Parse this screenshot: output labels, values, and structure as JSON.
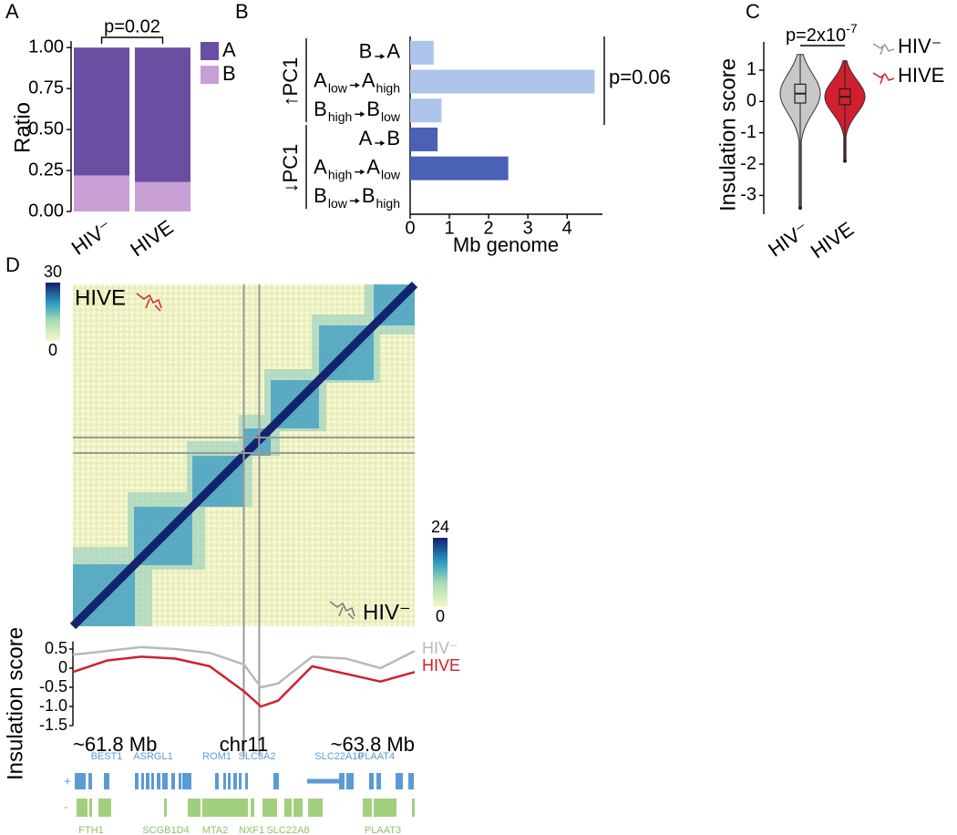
{
  "chart_data": [
    {
      "panel": "A",
      "type": "stacked-bar",
      "annotation": "p=0.02",
      "ylabel": "Ratio",
      "categories": [
        "HIV⁻",
        "HIVE"
      ],
      "series": [
        {
          "name": "B",
          "color": "#c79fd5",
          "values": [
            0.22,
            0.18
          ]
        },
        {
          "name": "A",
          "color": "#6a4ea2",
          "values": [
            0.78,
            0.82
          ]
        }
      ],
      "ylim": [
        0,
        1.04
      ],
      "yticks": [
        {
          "value": 0,
          "label": "0.00"
        },
        0.25,
        {
          "value": 0.5,
          "label": "0.50"
        },
        0.75,
        {
          "value": 1,
          "label": "1.00"
        }
      ]
    },
    {
      "panel": "B",
      "type": "hbar",
      "xlabel": "Mb genome",
      "annotation": "p=0.06",
      "groups": [
        {
          "name": "↑PC1",
          "color": "#adc5ea",
          "categories": [
            [
              "B",
              "A"
            ],
            [
              "A",
              "low",
              "A",
              "high"
            ],
            [
              "B",
              "high",
              "B",
              "low"
            ]
          ],
          "values": [
            0.6,
            4.7,
            0.8
          ]
        },
        {
          "name": "↓PC1",
          "color": "#4a61b5",
          "categories": [
            [
              "A",
              "B"
            ],
            [
              "A",
              "high",
              "A",
              "low"
            ],
            [
              "B",
              "low",
              "B",
              "high"
            ]
          ],
          "values": [
            0.7,
            2.5,
            0
          ]
        }
      ],
      "xlim": [
        0,
        4.9
      ],
      "xticks": [
        0,
        1,
        2,
        3,
        4
      ]
    },
    {
      "panel": "C",
      "type": "violin",
      "ylabel": "Insulation score",
      "annotation": [
        "p=2x10",
        "-7"
      ],
      "categories": [
        "HIV⁻",
        "HIVE"
      ],
      "series": [
        {
          "name": "HIV⁻",
          "color": "#c8c8c8",
          "median": 0.25,
          "q1": -0.05,
          "q3": 0.55,
          "min": -3.4,
          "max": 1.5
        },
        {
          "name": "HIVE",
          "color": "#d0202e",
          "median": 0.15,
          "q1": -0.1,
          "q3": 0.4,
          "min": -1.9,
          "max": 1.3
        }
      ],
      "ylim": [
        -3.6,
        1.9
      ],
      "yticks": [
        -3,
        -2,
        -1,
        0,
        1
      ]
    },
    {
      "panel": "D",
      "type": "heatmap",
      "labels": [
        "HIVE",
        "HIV⁻"
      ],
      "colorbars": [
        {
          "lim": [
            0,
            30
          ],
          "ticks": [
            0,
            30
          ]
        },
        {
          "lim": [
            0,
            24
          ],
          "ticks": [
            0,
            24
          ]
        }
      ]
    },
    {
      "type": "line",
      "ylabel": "Insulation score",
      "x": [
        61.8,
        62.0,
        62.2,
        62.4,
        62.6,
        62.8,
        62.9,
        63.0,
        63.2,
        63.4,
        63.6,
        63.8
      ],
      "xlim": [
        61.8,
        63.8
      ],
      "xticks": [
        {
          "value": 61.8,
          "label": "~61.8 Mb"
        },
        {
          "value": 62.8,
          "label": "chr11"
        },
        {
          "value": 63.8,
          "label": "~63.8 Mb"
        }
      ],
      "ylim": [
        -1.5,
        0.7
      ],
      "yticks": [
        0.5,
        0,
        -0.5,
        {
          "value": -1,
          "label": "-1.0"
        },
        -1.5
      ],
      "highlight": [
        62.8,
        62.89
      ],
      "series": [
        {
          "name": "HIV⁻",
          "color": "#b9b9b9",
          "values": [
            0.35,
            0.45,
            0.55,
            0.5,
            0.4,
            0.1,
            -0.5,
            -0.4,
            0.3,
            0.25,
            0.0,
            0.45
          ]
        },
        {
          "name": "HIVE",
          "color": "#d0202e",
          "values": [
            -0.1,
            0.2,
            0.3,
            0.25,
            0.05,
            -0.6,
            -1.0,
            -0.85,
            0.05,
            -0.15,
            -0.35,
            -0.1
          ]
        }
      ],
      "genes": {
        "plus": {
          "strand": "+",
          "names": [
            "BEST1",
            "ASRGL1",
            "ROM1",
            "SLC3A2",
            "SLC22A10",
            "PLAAT4"
          ]
        },
        "minus": {
          "strand": "-",
          "names": [
            "FTH1",
            "SCGB1D4",
            "MTA2",
            "NXF1",
            "SLC22A8",
            "PLAAT3"
          ]
        }
      }
    }
  ]
}
